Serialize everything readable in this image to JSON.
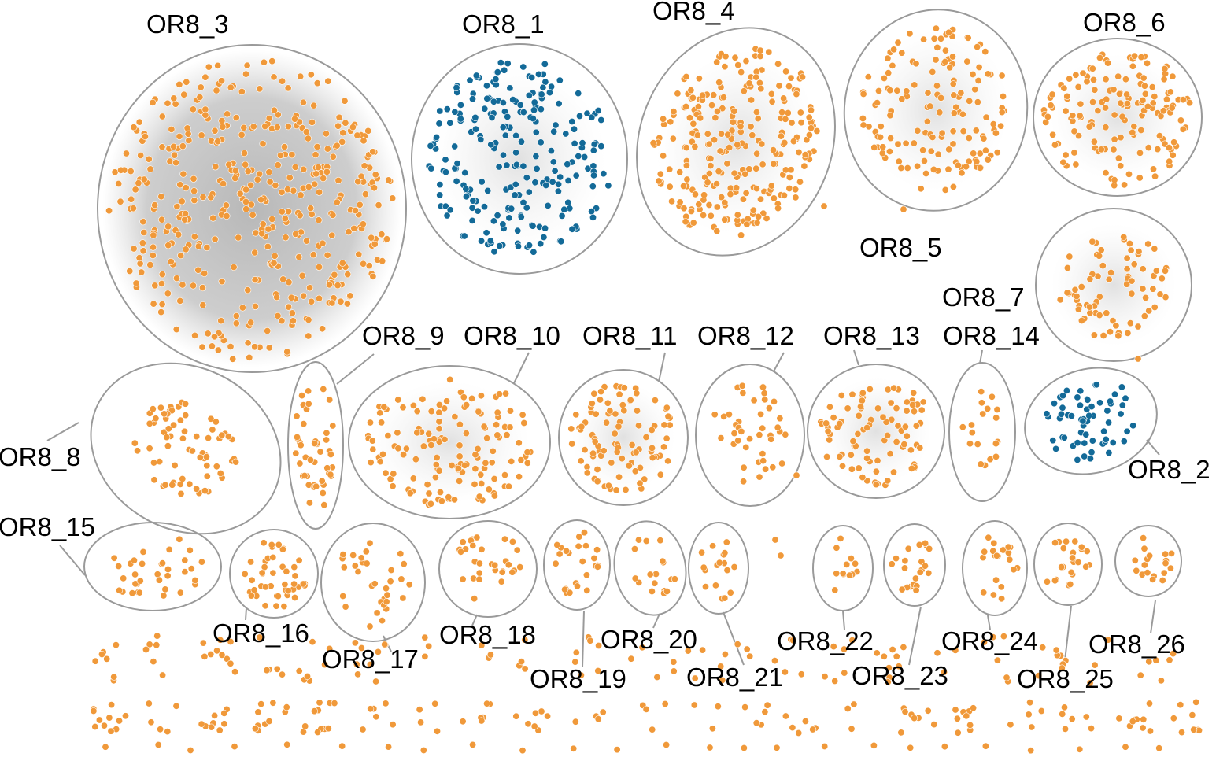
{
  "colors": {
    "orange": "#f0993a",
    "blue": "#136a98",
    "outline": "#9a9a9a",
    "haze": "#bdbdbd"
  },
  "clusters": [
    {
      "label": "OR8_1",
      "color": "blue"
    },
    {
      "label": "OR8_2",
      "color": "blue"
    },
    {
      "label": "OR8_3",
      "color": "orange"
    },
    {
      "label": "OR8_4",
      "color": "orange"
    },
    {
      "label": "OR8_5",
      "color": "orange"
    },
    {
      "label": "OR8_6",
      "color": "orange"
    },
    {
      "label": "OR8_7",
      "color": "orange"
    },
    {
      "label": "OR8_8",
      "color": "orange"
    },
    {
      "label": "OR8_9",
      "color": "orange"
    },
    {
      "label": "OR8_10",
      "color": "orange"
    },
    {
      "label": "OR8_11",
      "color": "orange"
    },
    {
      "label": "OR8_12",
      "color": "orange"
    },
    {
      "label": "OR8_13",
      "color": "orange"
    },
    {
      "label": "OR8_14",
      "color": "orange"
    },
    {
      "label": "OR8_15",
      "color": "orange"
    },
    {
      "label": "OR8_16",
      "color": "orange"
    },
    {
      "label": "OR8_17",
      "color": "orange"
    },
    {
      "label": "OR8_18",
      "color": "orange"
    },
    {
      "label": "OR8_19",
      "color": "orange"
    },
    {
      "label": "OR8_20",
      "color": "orange"
    },
    {
      "label": "OR8_21",
      "color": "orange"
    },
    {
      "label": "OR8_22",
      "color": "orange"
    },
    {
      "label": "OR8_23",
      "color": "orange"
    },
    {
      "label": "OR8_24",
      "color": "orange"
    },
    {
      "label": "OR8_25",
      "color": "orange"
    },
    {
      "label": "OR8_26",
      "color": "orange"
    }
  ]
}
